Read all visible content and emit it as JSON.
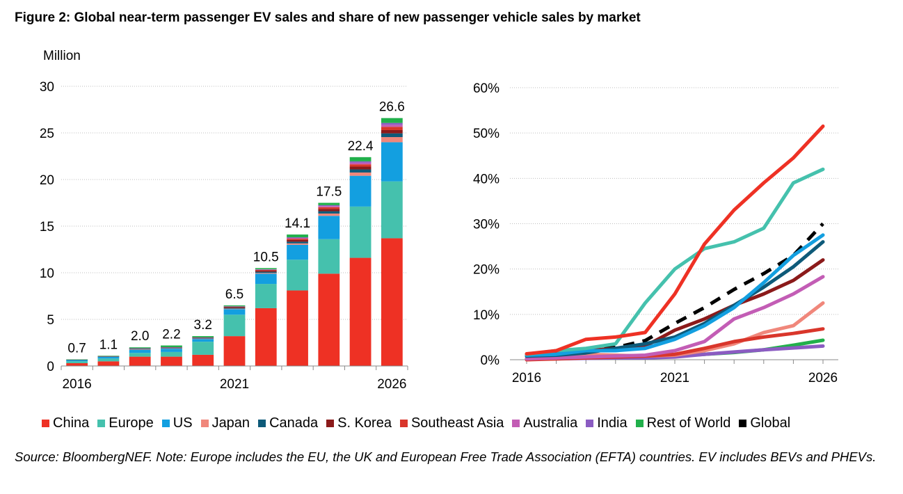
{
  "title": "Figure 2:  Global near-term passenger EV sales and share of new passenger vehicle sales by market",
  "source": "Source: BloombergNEF. Note: Europe includes the EU, the UK and European Free Trade Association (EFTA) countries. EV includes BEVs and PHEVs.",
  "legend": [
    {
      "name": "China",
      "color": "#ee3124"
    },
    {
      "name": "Europe",
      "color": "#45c1ad"
    },
    {
      "name": "US",
      "color": "#139fe0"
    },
    {
      "name": "Japan",
      "color": "#f0877b"
    },
    {
      "name": "Canada",
      "color": "#0e5a79"
    },
    {
      "name": "S. Korea",
      "color": "#8b1a1a"
    },
    {
      "name": "Southeast Asia",
      "color": "#d9362b"
    },
    {
      "name": "Australia",
      "color": "#c35db5"
    },
    {
      "name": "India",
      "color": "#8b5cc2"
    },
    {
      "name": "Rest of World",
      "color": "#21b04b"
    },
    {
      "name": "Global",
      "color": "#000000"
    }
  ],
  "chart_data": [
    {
      "type": "bar",
      "stacked": true,
      "ylabel": "Million",
      "ylim": [
        0,
        30
      ],
      "yticks": [
        "0",
        "5",
        "10",
        "15",
        "20",
        "25",
        "30"
      ],
      "categories": [
        "2016",
        "2017",
        "2018",
        "2019",
        "2020",
        "2021",
        "2022",
        "2023",
        "2024",
        "2025",
        "2026"
      ],
      "xtick_labels": [
        "2016",
        "",
        "",
        "",
        "",
        "2021",
        "",
        "",
        "",
        "",
        "2026"
      ],
      "totals": [
        "0.7",
        "1.1",
        "2.0",
        "2.2",
        "3.2",
        "6.5",
        "10.5",
        "14.1",
        "17.5",
        "22.4",
        "26.6"
      ],
      "series": [
        {
          "name": "China",
          "values": [
            0.3,
            0.5,
            1.0,
            1.0,
            1.2,
            3.2,
            6.2,
            8.1,
            9.9,
            11.6,
            13.7
          ]
        },
        {
          "name": "Europe",
          "values": [
            0.2,
            0.3,
            0.4,
            0.5,
            1.4,
            2.3,
            2.6,
            3.3,
            3.7,
            5.5,
            6.1
          ]
        },
        {
          "name": "US",
          "values": [
            0.15,
            0.2,
            0.35,
            0.35,
            0.3,
            0.6,
            1.1,
            1.6,
            2.5,
            3.3,
            4.2
          ]
        },
        {
          "name": "Japan",
          "values": [
            0.02,
            0.03,
            0.05,
            0.04,
            0.03,
            0.05,
            0.08,
            0.15,
            0.25,
            0.35,
            0.55
          ]
        },
        {
          "name": "Canada",
          "values": [
            0.01,
            0.02,
            0.04,
            0.05,
            0.05,
            0.08,
            0.12,
            0.18,
            0.25,
            0.33,
            0.4
          ]
        },
        {
          "name": "S. Korea",
          "values": [
            0.01,
            0.01,
            0.03,
            0.04,
            0.05,
            0.1,
            0.15,
            0.2,
            0.25,
            0.3,
            0.35
          ]
        },
        {
          "name": "Southeast Asia",
          "values": [
            0.0,
            0.0,
            0.01,
            0.01,
            0.01,
            0.03,
            0.06,
            0.12,
            0.18,
            0.25,
            0.35
          ]
        },
        {
          "name": "Australia",
          "values": [
            0.0,
            0.0,
            0.01,
            0.01,
            0.01,
            0.02,
            0.04,
            0.08,
            0.12,
            0.17,
            0.22
          ]
        },
        {
          "name": "India",
          "values": [
            0.0,
            0.0,
            0.01,
            0.01,
            0.01,
            0.02,
            0.03,
            0.07,
            0.1,
            0.15,
            0.2
          ]
        },
        {
          "name": "Rest of World",
          "values": [
            0.01,
            0.04,
            0.1,
            0.19,
            0.14,
            0.1,
            0.12,
            0.3,
            0.25,
            0.45,
            0.52
          ]
        }
      ]
    },
    {
      "type": "line",
      "ylim": [
        0,
        0.6
      ],
      "yticks": [
        "0%",
        "10%",
        "20%",
        "30%",
        "40%",
        "50%",
        "60%"
      ],
      "categories": [
        "2016",
        "2017",
        "2018",
        "2019",
        "2020",
        "2021",
        "2022",
        "2023",
        "2024",
        "2025",
        "2026"
      ],
      "xtick_labels": [
        "2016",
        "",
        "",
        "",
        "",
        "2021",
        "",
        "",
        "",
        "",
        "2026"
      ],
      "series": [
        {
          "name": "Global",
          "dashed": true,
          "values": [
            0.01,
            0.015,
            0.022,
            0.027,
            0.042,
            0.08,
            0.115,
            0.155,
            0.19,
            0.23,
            0.3
          ]
        },
        {
          "name": "Rest of World",
          "values": [
            0.003,
            0.005,
            0.007,
            0.008,
            0.008,
            0.008,
            0.012,
            0.016,
            0.022,
            0.032,
            0.043
          ]
        },
        {
          "name": "India",
          "values": [
            0.002,
            0.002,
            0.003,
            0.004,
            0.004,
            0.006,
            0.012,
            0.017,
            0.022,
            0.026,
            0.03
          ]
        },
        {
          "name": "Japan",
          "values": [
            0.008,
            0.012,
            0.012,
            0.01,
            0.008,
            0.01,
            0.02,
            0.035,
            0.06,
            0.075,
            0.125
          ]
        },
        {
          "name": "Southeast Asia",
          "values": [
            0.0,
            0.002,
            0.004,
            0.006,
            0.008,
            0.012,
            0.025,
            0.04,
            0.05,
            0.058,
            0.068
          ]
        },
        {
          "name": "Australia",
          "values": [
            0.002,
            0.004,
            0.006,
            0.008,
            0.01,
            0.02,
            0.04,
            0.09,
            0.115,
            0.145,
            0.183
          ]
        },
        {
          "name": "S. Korea",
          "values": [
            0.01,
            0.013,
            0.02,
            0.025,
            0.03,
            0.065,
            0.09,
            0.12,
            0.145,
            0.175,
            0.22
          ]
        },
        {
          "name": "Canada",
          "values": [
            0.008,
            0.01,
            0.015,
            0.025,
            0.035,
            0.05,
            0.08,
            0.12,
            0.16,
            0.205,
            0.26
          ]
        },
        {
          "name": "US",
          "values": [
            0.01,
            0.012,
            0.02,
            0.02,
            0.025,
            0.045,
            0.075,
            0.115,
            0.17,
            0.23,
            0.275
          ]
        },
        {
          "name": "Europe",
          "values": [
            0.012,
            0.02,
            0.025,
            0.035,
            0.125,
            0.2,
            0.245,
            0.26,
            0.29,
            0.39,
            0.42
          ]
        },
        {
          "name": "China",
          "values": [
            0.013,
            0.02,
            0.045,
            0.05,
            0.06,
            0.145,
            0.255,
            0.33,
            0.39,
            0.445,
            0.515
          ]
        }
      ]
    }
  ]
}
